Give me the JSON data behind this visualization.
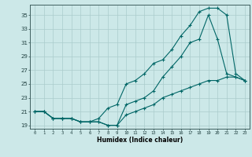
{
  "xlabel": "Humidex (Indice chaleur)",
  "bg_color": "#cce8e8",
  "grid_color": "#aacccc",
  "line_color": "#006666",
  "xlim": [
    -0.5,
    23.5
  ],
  "ylim": [
    18.5,
    36.5
  ],
  "xticks": [
    0,
    1,
    2,
    3,
    4,
    5,
    6,
    7,
    8,
    9,
    10,
    11,
    12,
    13,
    14,
    15,
    16,
    17,
    18,
    19,
    20,
    21,
    22,
    23
  ],
  "yticks": [
    19,
    21,
    23,
    25,
    27,
    29,
    31,
    33,
    35
  ],
  "line1_x": [
    0,
    1,
    2,
    3,
    4,
    5,
    6,
    7,
    8,
    9,
    10,
    11,
    12,
    13,
    14,
    15,
    16,
    17,
    18,
    19,
    20,
    21,
    22,
    23
  ],
  "line1_y": [
    21,
    21,
    20,
    20,
    20,
    19.5,
    19.5,
    19.5,
    19,
    19,
    22,
    22.5,
    23,
    24,
    26,
    27.5,
    29,
    31,
    31.5,
    35,
    31.5,
    26.5,
    26,
    25.5
  ],
  "line2_x": [
    0,
    1,
    2,
    3,
    4,
    5,
    6,
    7,
    8,
    9,
    10,
    11,
    12,
    13,
    14,
    15,
    16,
    17,
    18,
    19,
    20,
    21,
    22,
    23
  ],
  "line2_y": [
    21,
    21,
    20,
    20,
    20,
    19.5,
    19.5,
    20,
    21.5,
    22,
    25,
    25.5,
    26.5,
    28,
    28.5,
    30,
    32,
    33.5,
    35.5,
    36,
    36,
    35,
    26.5,
    25.5
  ],
  "line3_x": [
    0,
    1,
    2,
    3,
    4,
    5,
    6,
    7,
    8,
    9,
    10,
    11,
    12,
    13,
    14,
    15,
    16,
    17,
    18,
    19,
    20,
    21,
    22,
    23
  ],
  "line3_y": [
    21,
    21,
    20,
    20,
    20,
    19.5,
    19.5,
    19.5,
    19,
    19,
    20.5,
    21,
    21.5,
    22,
    23,
    23.5,
    24,
    24.5,
    25,
    25.5,
    25.5,
    26,
    26,
    25.5
  ]
}
